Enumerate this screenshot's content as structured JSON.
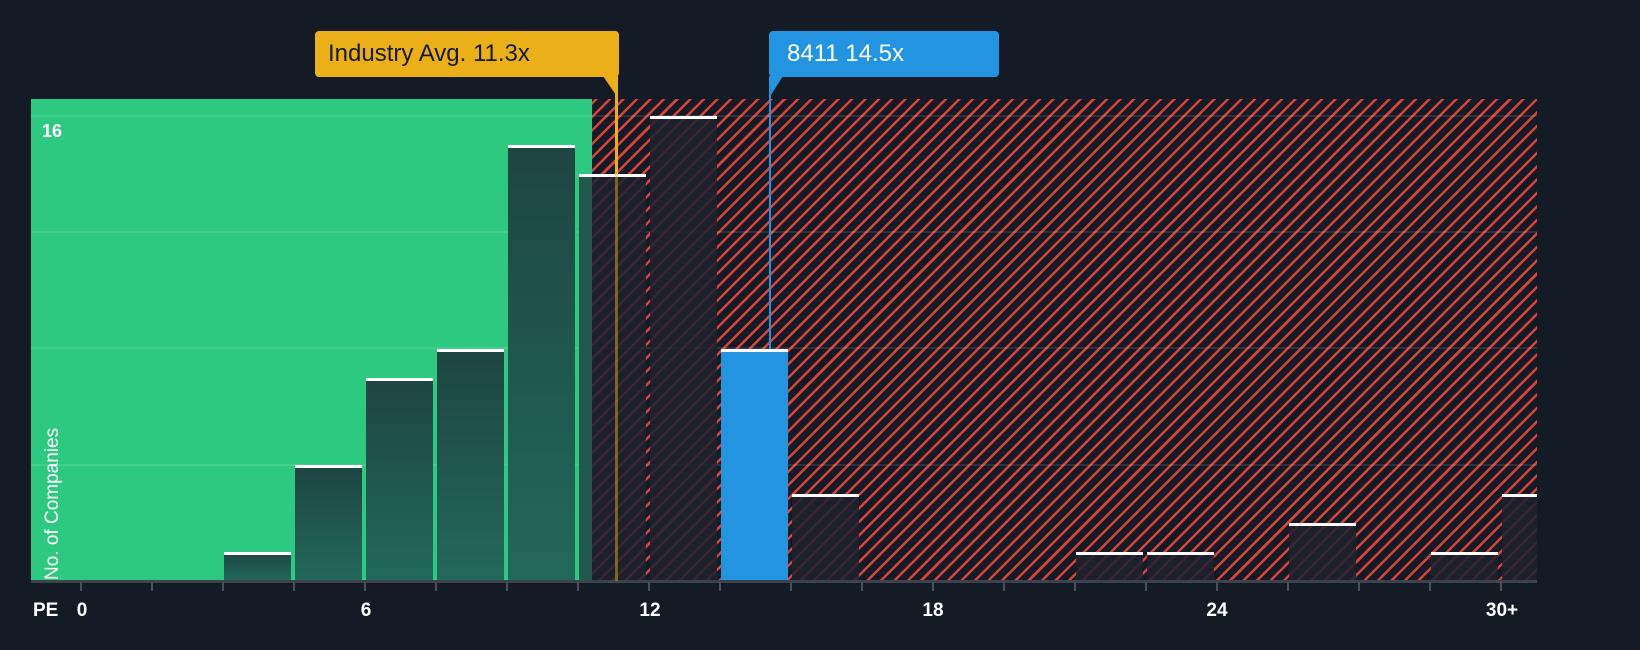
{
  "chart_data": {
    "type": "bar",
    "title": "",
    "xlabel": "PE",
    "ylabel": "No. of Companies",
    "x_tick_labels": [
      "0",
      "6",
      "12",
      "18",
      "24",
      "30+"
    ],
    "x_tick_values": [
      0,
      6,
      12,
      18,
      24,
      30
    ],
    "y_tick_labels": [
      "16"
    ],
    "ylim": [
      0,
      16
    ],
    "bin_width": 1.5,
    "grid": true,
    "gridlines_y": [
      4,
      8,
      12,
      16
    ],
    "bins": [
      {
        "start": 0,
        "end": 1.5,
        "count": 0
      },
      {
        "start": 1.5,
        "end": 3,
        "count": 0
      },
      {
        "start": 3,
        "end": 4.5,
        "count": 1
      },
      {
        "start": 4.5,
        "end": 6,
        "count": 4
      },
      {
        "start": 6,
        "end": 7.5,
        "count": 7
      },
      {
        "start": 7.5,
        "end": 9,
        "count": 8
      },
      {
        "start": 9,
        "end": 10.5,
        "count": 15
      },
      {
        "start": 10.5,
        "end": 12,
        "count": 14
      },
      {
        "start": 12,
        "end": 13.5,
        "count": 16
      },
      {
        "start": 13.5,
        "end": 15,
        "count": 8,
        "highlighted": true
      },
      {
        "start": 15,
        "end": 16.5,
        "count": 3
      },
      {
        "start": 16.5,
        "end": 18,
        "count": 0
      },
      {
        "start": 18,
        "end": 19.5,
        "count": 0
      },
      {
        "start": 19.5,
        "end": 21,
        "count": 0
      },
      {
        "start": 21,
        "end": 22.5,
        "count": 1
      },
      {
        "start": 22.5,
        "end": 24,
        "count": 1
      },
      {
        "start": 24,
        "end": 25.5,
        "count": 0
      },
      {
        "start": 25.5,
        "end": 27,
        "count": 2
      },
      {
        "start": 27,
        "end": 28.5,
        "count": 0
      },
      {
        "start": 28.5,
        "end": 30,
        "count": 1
      },
      {
        "start": 30,
        "end": 31.5,
        "count": 3,
        "label": "30+"
      }
    ],
    "regions": [
      {
        "name": "below-industry-avg",
        "from": 0,
        "to": 10.5,
        "color": "#2ec981"
      },
      {
        "name": "above-industry-avg",
        "from": 10.5,
        "to": 31.5,
        "color": "#d9413f",
        "pattern": "hatched"
      }
    ],
    "annotations": [
      {
        "label": "Industry Avg. 11.3x",
        "x": 11.3,
        "color": "#ebb018"
      },
      {
        "label": "8411 14.5x",
        "x": 14.5,
        "color": "#2394e0"
      }
    ]
  },
  "labels": {
    "industry_callout": "Industry Avg. 11.3x",
    "company_callout": "8411 14.5x",
    "y_axis_title": "No. of Companies",
    "y_top_tick": "16",
    "x_axis_title": "PE",
    "x_ticks": [
      "0",
      "6",
      "12",
      "18",
      "24",
      "30+"
    ]
  },
  "colors": {
    "background": "#151b24",
    "green": "#2ec981",
    "red_hatch": "#d9413f",
    "industry": "#ebb018",
    "company": "#2394e0"
  }
}
